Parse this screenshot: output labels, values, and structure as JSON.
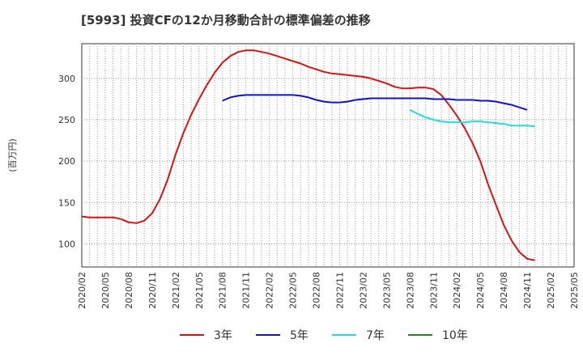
{
  "chart_data": {
    "type": "line",
    "title": "[5993]  投資CFの12か月移動合計の標準偏差の推移",
    "ylabel": "(百万円)",
    "xlabel": "",
    "ylim": [
      72,
      342
    ],
    "yticks": [
      100,
      150,
      200,
      250,
      300
    ],
    "xticks": [
      "2020/02",
      "2020/05",
      "2020/08",
      "2020/11",
      "2021/02",
      "2021/05",
      "2021/08",
      "2021/11",
      "2022/02",
      "2022/05",
      "2022/08",
      "2022/11",
      "2023/02",
      "2023/05",
      "2023/08",
      "2023/11",
      "2024/02",
      "2024/05",
      "2024/08",
      "2024/11",
      "2025/02",
      "2025/05"
    ],
    "grid": true,
    "legend_position": "bottom",
    "series": [
      {
        "name": "3年",
        "color": "#dd1111",
        "start_month": 0,
        "values": [
          133,
          132,
          132,
          132,
          132,
          130,
          126,
          125,
          128,
          137,
          154,
          178,
          208,
          234,
          256,
          275,
          292,
          307,
          319,
          327,
          332,
          334,
          334,
          332,
          330,
          327,
          324,
          321,
          318,
          314,
          311,
          308,
          306,
          305,
          304,
          303,
          302,
          300,
          297,
          294,
          290,
          288,
          288,
          289,
          289,
          287,
          280,
          268,
          255,
          240,
          222,
          200,
          172,
          147,
          123,
          104,
          90,
          82,
          80
        ]
      },
      {
        "name": "5年",
        "color": "#1111cc",
        "start_month": 18,
        "values": [
          273,
          277,
          279,
          280,
          280,
          280,
          280,
          280,
          280,
          280,
          279,
          277,
          274,
          272,
          271,
          271,
          272,
          274,
          275,
          276,
          276,
          276,
          276,
          276,
          276,
          276,
          276,
          275,
          275,
          275,
          274,
          274,
          274,
          273,
          273,
          272,
          270,
          268,
          265,
          262
        ]
      },
      {
        "name": "7年",
        "color": "#22dddd",
        "start_month": 42,
        "values": [
          262,
          257,
          253,
          250,
          248,
          247,
          247,
          247,
          248,
          248,
          247,
          246,
          245,
          243,
          243,
          243,
          242
        ]
      },
      {
        "name": "10年",
        "color": "#228822",
        "start_month": 0,
        "values": []
      }
    ]
  }
}
